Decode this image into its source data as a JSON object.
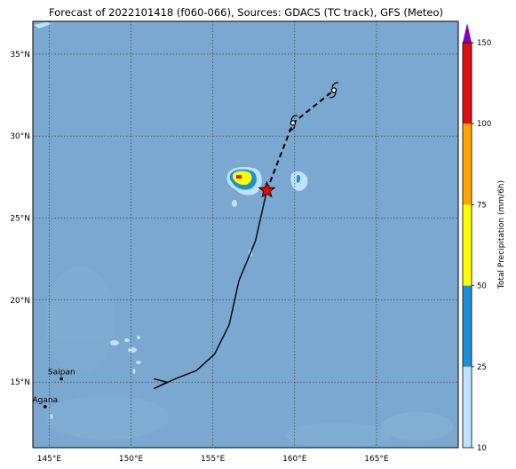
{
  "title": "Forecast of 2022101418 (f060-066), Sources: GDACS (TC track), GFS (Meteo)",
  "colorbar": {
    "label": "Total Precipitation (mm/6h)",
    "ticks": [
      "10",
      "25",
      "50",
      "75",
      "100",
      "150"
    ],
    "levels": [
      10,
      25,
      50,
      75,
      100,
      150
    ],
    "colors": [
      "#bfe3ff",
      "#1e8fd6",
      "#ffff00",
      "#ffa500",
      "#e01010"
    ],
    "extend_color": "#8000c0"
  },
  "map": {
    "lon_range": [
      144,
      170
    ],
    "lat_range": [
      11,
      37
    ],
    "lon_ticks": [
      145,
      150,
      155,
      160,
      165
    ],
    "lat_ticks": [
      15,
      20,
      25,
      30,
      35
    ],
    "lon_labels": [
      "145°E",
      "150°E",
      "155°E",
      "160°E",
      "165°E"
    ],
    "lat_labels": [
      "15°N",
      "20°N",
      "25°N",
      "30°N",
      "35°N"
    ],
    "ocean_color": "#7aa8d0",
    "grid": true
  },
  "places": [
    {
      "name": "Saipan",
      "lon": 145.75,
      "lat": 15.2
    },
    {
      "name": "Agana",
      "lon": 144.75,
      "lat": 13.5
    }
  ],
  "track_observed": [
    [
      151.4,
      15.2
    ],
    [
      152.2,
      15.0
    ],
    [
      151.4,
      14.6
    ],
    [
      152.7,
      15.2
    ],
    [
      154.0,
      15.7
    ],
    [
      155.1,
      16.7
    ],
    [
      156.0,
      18.5
    ],
    [
      156.6,
      21.2
    ],
    [
      157.6,
      23.6
    ],
    [
      158.3,
      26.7
    ]
  ],
  "track_forecast": [
    [
      158.3,
      26.7
    ],
    [
      159.9,
      30.8
    ],
    [
      162.4,
      32.8
    ]
  ],
  "current_position": {
    "lon": 158.3,
    "lat": 26.7
  },
  "forecast_symbols": [
    {
      "lon": 159.9,
      "lat": 30.8
    },
    {
      "lon": 162.4,
      "lat": 32.8
    }
  ]
}
